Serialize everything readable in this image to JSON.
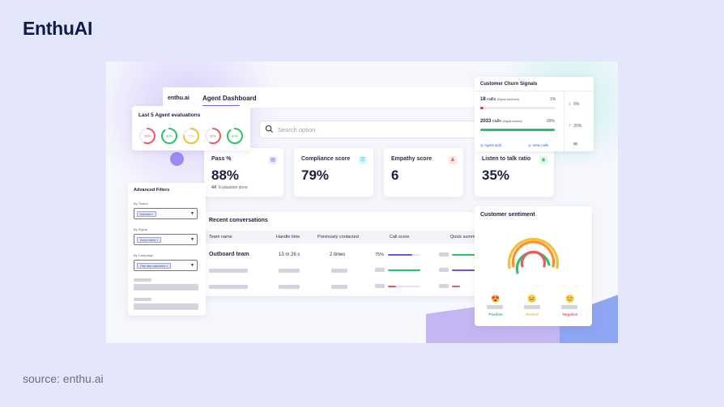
{
  "brand": "EnthuAI",
  "source": "source: enthu.ai",
  "header": {
    "logo": "enthu.ai",
    "title": "Agent Dashboard"
  },
  "search": {
    "placeholder": "Search option"
  },
  "metrics": [
    {
      "label": "Pass %",
      "value": "88%",
      "sub_count": "44",
      "sub_text": "Evaluation done",
      "icon": "calendar-icon",
      "color": "#7a64e8"
    },
    {
      "label": "Compliance score",
      "value": "79%",
      "icon": "list-icon",
      "color": "#35b6d8"
    },
    {
      "label": "Empathy score",
      "value": "6",
      "icon": "people-icon",
      "color": "#ea5a5a"
    },
    {
      "label": "Listen to talk ratio",
      "value": "35%",
      "icon": "ear-icon",
      "color": "#2ec26a"
    }
  ],
  "evaluations": {
    "title": "Last 5 Agent evaluations",
    "rings": [
      {
        "label": "56%",
        "color": "#ea5a6a",
        "value": 56
      },
      {
        "label": "89%",
        "color": "#2ec26a",
        "value": 89
      },
      {
        "label": "75%",
        "color": "#f2c033",
        "value": 75
      },
      {
        "label": "56%",
        "color": "#ea5a6a",
        "value": 56
      },
      {
        "label": "89%",
        "color": "#2ec26a",
        "value": 89
      }
    ]
  },
  "filters": {
    "title": "Advanced Filters",
    "items": [
      {
        "label": "By Teams",
        "chip": "Inbound"
      },
      {
        "label": "By Signal",
        "chip": "Churn Intent"
      },
      {
        "label": "By Campaign",
        "chip": "Onb new customers"
      }
    ]
  },
  "conversations": {
    "title": "Recent conversations",
    "columns": [
      "Team name",
      "Handle time",
      "Previously contacted",
      "Call score",
      "Quick summ"
    ],
    "row": {
      "team": "Outboard team",
      "handle": "13 m 26 s",
      "contacted": "2 times",
      "score": "75%",
      "score_value": 75
    }
  },
  "churn": {
    "title": "Customer Churn Signals",
    "rows": [
      {
        "count": "18",
        "unit": "calls",
        "note": "(Signal achieved)",
        "pct": "1%",
        "value": 1,
        "color": "#e0344a"
      },
      {
        "count": "2033",
        "unit": "calls",
        "note": "(Signal missed)",
        "pct": "99%",
        "value": 99,
        "color": "#27c071"
      }
    ],
    "trends": [
      {
        "label": "6%",
        "color": "#e0344a",
        "dir": "down"
      },
      {
        "label": "20%",
        "color": "#27c071",
        "dir": "up"
      }
    ],
    "links": [
      "Agent split",
      "View calls"
    ]
  },
  "sentiment": {
    "title": "Customer sentiment",
    "labels": [
      {
        "text": "Positive",
        "color": "#2ec26a",
        "emoji": "😍"
      },
      {
        "text": "Neutral",
        "color": "#f2c033",
        "emoji": "😐"
      },
      {
        "text": "Negative",
        "color": "#ea5a5a",
        "emoji": "🙂"
      }
    ],
    "arc_colors": [
      "#f2c033",
      "#ff8f2e",
      "#2ec26a",
      "#ea5a5a"
    ]
  }
}
